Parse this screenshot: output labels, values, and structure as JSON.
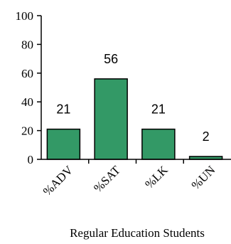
{
  "chart_data": {
    "type": "bar",
    "categories": [
      "%ADV",
      "%SAT",
      "%LK",
      "%UN"
    ],
    "values": [
      21,
      56,
      21,
      2
    ],
    "data_labels": [
      "21",
      "56",
      "21",
      "2"
    ],
    "title": "",
    "xlabel": "Regular Education Students",
    "ylabel": "",
    "ylim": [
      0,
      100
    ],
    "yticks": [
      "0",
      "20",
      "40",
      "60",
      "80",
      "100"
    ],
    "grid": false,
    "bar_color": "#339966"
  }
}
